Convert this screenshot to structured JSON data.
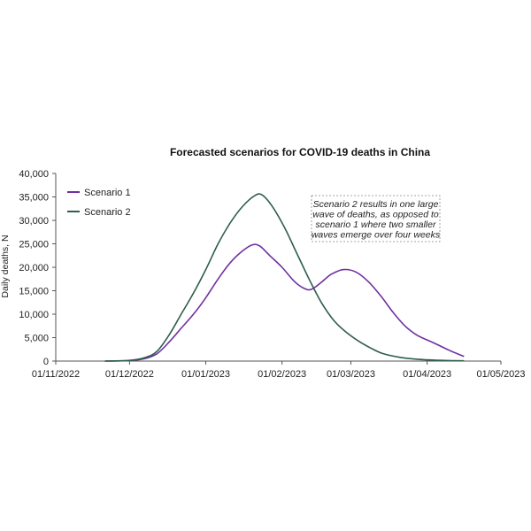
{
  "chart_data": {
    "type": "line",
    "title": "Forecasted scenarios for COVID-19 deaths in China",
    "xlabel": "",
    "ylabel": "Daily deaths, N",
    "xlim": [
      "01/11/2022",
      "01/05/2023"
    ],
    "ylim": [
      0,
      40000
    ],
    "x_ticks": [
      "01/11/2022",
      "01/12/2022",
      "01/01/2023",
      "01/02/2023",
      "01/03/2023",
      "01/04/2023",
      "01/05/2023"
    ],
    "y_ticks": [
      "0",
      "5,000",
      "10,000",
      "15,000",
      "20,000",
      "25,000",
      "30,000",
      "35,000",
      "40,000"
    ],
    "y_tick_values": [
      0,
      5000,
      10000,
      15000,
      20000,
      25000,
      30000,
      35000,
      40000
    ],
    "grid": false,
    "legend_position": "top-left",
    "series": [
      {
        "name": "Scenario 1",
        "color": "#7030a0",
        "points": [
          [
            "2022-11-21",
            0
          ],
          [
            "2022-12-01",
            100
          ],
          [
            "2022-12-07",
            500
          ],
          [
            "2022-12-12",
            1500
          ],
          [
            "2022-12-17",
            4000
          ],
          [
            "2022-12-22",
            7000
          ],
          [
            "2022-12-27",
            10000
          ],
          [
            "2023-01-01",
            13500
          ],
          [
            "2023-01-06",
            17500
          ],
          [
            "2023-01-11",
            21000
          ],
          [
            "2023-01-16",
            23500
          ],
          [
            "2023-01-20",
            24800
          ],
          [
            "2023-01-23",
            24500
          ],
          [
            "2023-01-27",
            22500
          ],
          [
            "2023-02-01",
            20000
          ],
          [
            "2023-02-06",
            17000
          ],
          [
            "2023-02-10",
            15500
          ],
          [
            "2023-02-13",
            15300
          ],
          [
            "2023-02-17",
            16800
          ],
          [
            "2023-02-21",
            18500
          ],
          [
            "2023-02-26",
            19500
          ],
          [
            "2023-03-03",
            19000
          ],
          [
            "2023-03-08",
            17000
          ],
          [
            "2023-03-13",
            14000
          ],
          [
            "2023-03-18",
            10500
          ],
          [
            "2023-03-23",
            7500
          ],
          [
            "2023-03-28",
            5500
          ],
          [
            "2023-04-04",
            3800
          ],
          [
            "2023-04-10",
            2300
          ],
          [
            "2023-04-16",
            1000
          ]
        ]
      },
      {
        "name": "Scenario 2",
        "color": "#2e5e4e",
        "points": [
          [
            "2022-11-21",
            0
          ],
          [
            "2022-12-01",
            150
          ],
          [
            "2022-12-07",
            700
          ],
          [
            "2022-12-12",
            2000
          ],
          [
            "2022-12-17",
            5500
          ],
          [
            "2022-12-22",
            10000
          ],
          [
            "2022-12-27",
            14500
          ],
          [
            "2023-01-01",
            19500
          ],
          [
            "2023-01-06",
            25000
          ],
          [
            "2023-01-11",
            29500
          ],
          [
            "2023-01-16",
            33000
          ],
          [
            "2023-01-21",
            35300
          ],
          [
            "2023-01-24",
            35400
          ],
          [
            "2023-01-28",
            33000
          ],
          [
            "2023-02-02",
            28500
          ],
          [
            "2023-02-07",
            23000
          ],
          [
            "2023-02-12",
            17500
          ],
          [
            "2023-02-17",
            12500
          ],
          [
            "2023-02-22",
            8700
          ],
          [
            "2023-02-27",
            6200
          ],
          [
            "2023-03-04",
            4300
          ],
          [
            "2023-03-09",
            2800
          ],
          [
            "2023-03-14",
            1600
          ],
          [
            "2023-03-21",
            800
          ],
          [
            "2023-03-28",
            400
          ],
          [
            "2023-04-04",
            200
          ],
          [
            "2023-04-11",
            100
          ],
          [
            "2023-04-16",
            50
          ]
        ]
      }
    ],
    "annotation": {
      "lines": [
        "Scenario 2 results in one large",
        "wave of deaths, as opposed to",
        "scenario 1 where two smaller",
        "waves emerge over four weeks"
      ]
    }
  }
}
